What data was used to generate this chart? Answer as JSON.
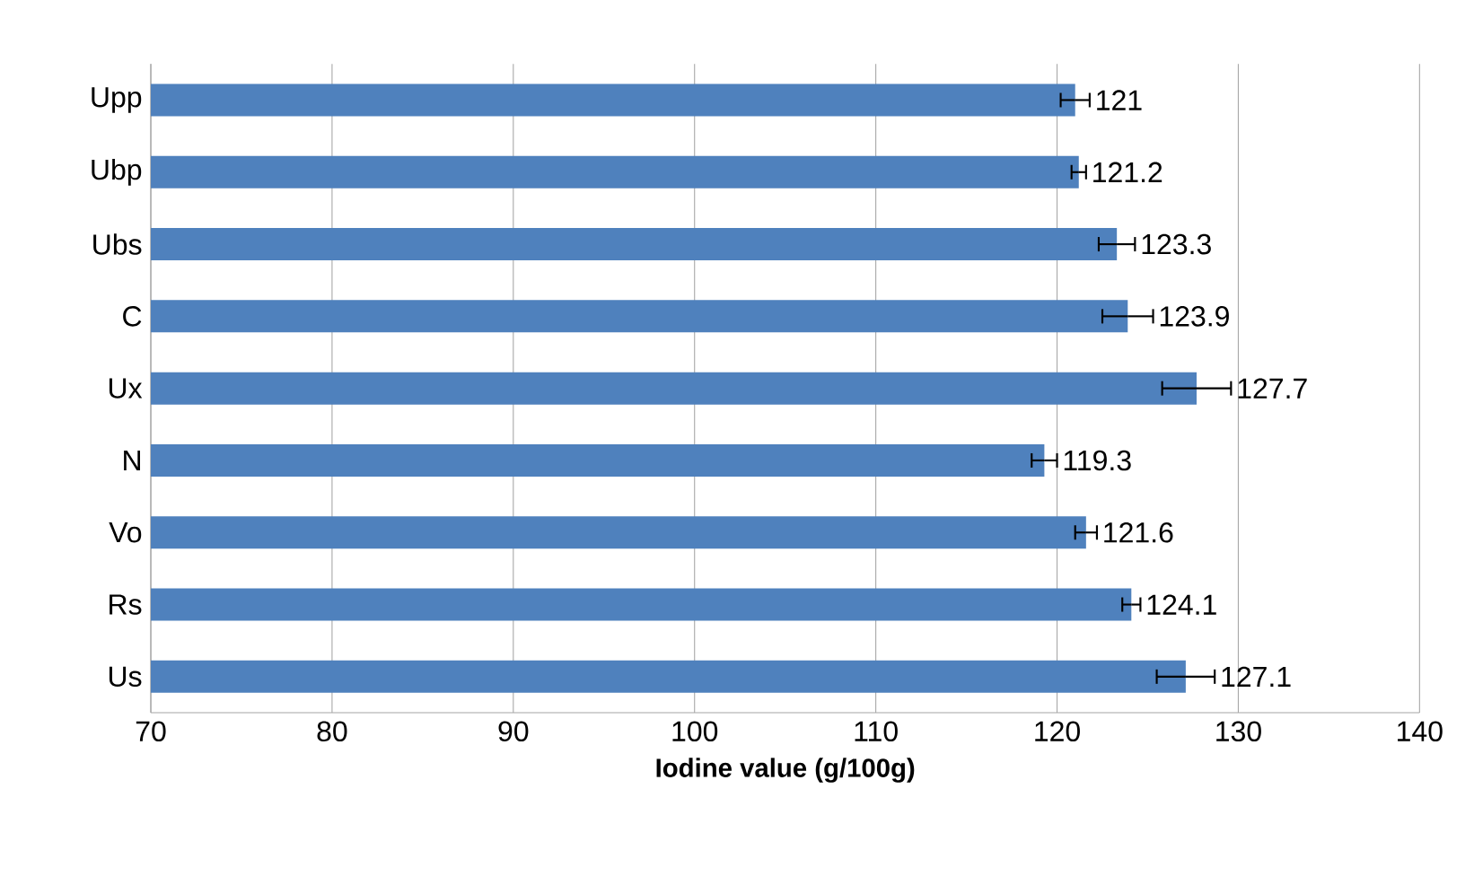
{
  "chart_data": {
    "type": "bar",
    "orientation": "horizontal",
    "xlabel": "Iodine value (g/100g)",
    "categories": [
      "Upp",
      "Ubp",
      "Ubs",
      "C",
      "Ux",
      "N",
      "Vo",
      "Rs",
      "Us"
    ],
    "values": [
      121,
      121.2,
      123.3,
      123.9,
      127.7,
      119.3,
      121.6,
      124.1,
      127.1
    ],
    "errors": [
      0.8,
      0.4,
      1.0,
      1.4,
      1.9,
      0.7,
      0.6,
      0.5,
      1.6
    ],
    "color": "#4f81bd",
    "data_labels": true,
    "grid": "x",
    "xlim": [
      70,
      140
    ],
    "xticks": [
      70,
      80,
      90,
      100,
      110,
      120,
      130,
      140
    ]
  }
}
